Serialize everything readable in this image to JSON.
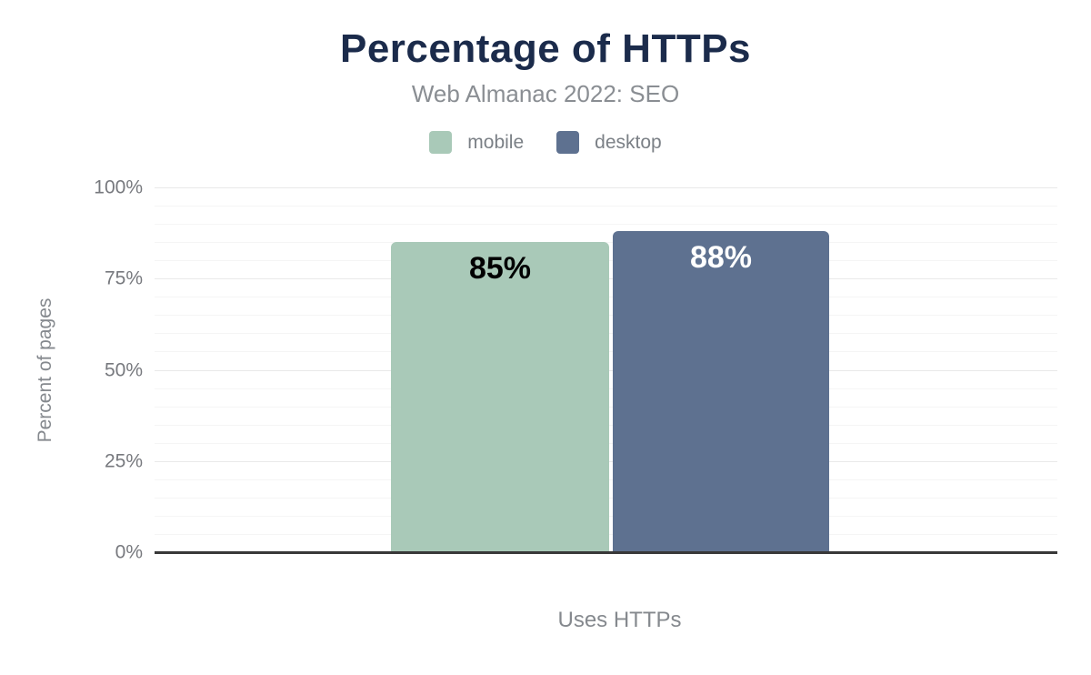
{
  "header": {
    "title": "Percentage of HTTPs",
    "subtitle": "Web Almanac 2022: SEO"
  },
  "legend": {
    "items": [
      {
        "label": "mobile",
        "color": "#a9c9b8"
      },
      {
        "label": "desktop",
        "color": "#5e7190"
      }
    ]
  },
  "chart_data": {
    "type": "bar",
    "title": "Percentage of HTTPs",
    "subtitle": "Web Almanac 2022: SEO",
    "categories": [
      "Uses HTTPs"
    ],
    "series": [
      {
        "name": "mobile",
        "values": [
          85
        ],
        "value_labels": [
          "85%"
        ],
        "color": "#a9c9b8",
        "value_label_color": "#000000"
      },
      {
        "name": "desktop",
        "values": [
          88
        ],
        "value_labels": [
          "88%"
        ],
        "color": "#5e7190",
        "value_label_color": "#ffffff"
      }
    ],
    "xlabel": "Uses HTTPs",
    "ylabel": "Percent of pages",
    "ylim": [
      0,
      100
    ],
    "yticks": [
      {
        "value": 0,
        "label": "0%"
      },
      {
        "value": 25,
        "label": "25%"
      },
      {
        "value": 50,
        "label": "50%"
      },
      {
        "value": 75,
        "label": "75%"
      },
      {
        "value": 100,
        "label": "100%"
      }
    ],
    "minor_grid_step": 5,
    "grid": "horizontal",
    "legend_position": "top"
  },
  "colors": {
    "title": "#1b2b4b",
    "subtitle": "#8a8e93",
    "legend_text": "#7b8086",
    "tick_text": "#77797e",
    "axis_title_text": "#85898e",
    "grid_major": "#e9e9e9",
    "grid_minor": "#f5f5f5",
    "axis_line": "#383838",
    "background": "#ffffff"
  }
}
